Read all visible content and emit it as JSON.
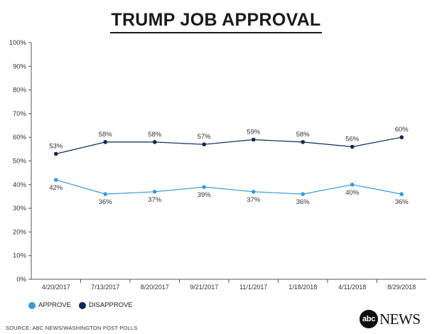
{
  "chart_data": {
    "type": "line",
    "title": "TRUMP JOB APPROVAL",
    "categories": [
      "4/20/2017",
      "7/13/2017",
      "8/20/2017",
      "9/21/2017",
      "11/1/2017",
      "1/18/2018",
      "4/11/2018",
      "8/29/2018"
    ],
    "y_ticks": [
      "0%",
      "10%",
      "20%",
      "30%",
      "40%",
      "50%",
      "60%",
      "70%",
      "80%",
      "90%",
      "100%"
    ],
    "ylim": [
      0,
      100
    ],
    "grid": false,
    "legend_position": "bottom-left",
    "series": [
      {
        "name": "APPROVE",
        "color": "#3a9ad9",
        "values": [
          42,
          36,
          37,
          39,
          37,
          36,
          40,
          36
        ],
        "labels": [
          "42%",
          "36%",
          "37%",
          "39%",
          "37%",
          "36%",
          "40%",
          "36%"
        ]
      },
      {
        "name": "DISAPPROVE",
        "color": "#0d2a55",
        "values": [
          53,
          58,
          58,
          57,
          59,
          58,
          56,
          60
        ],
        "labels": [
          "53%",
          "58%",
          "58%",
          "57%",
          "59%",
          "58%",
          "56%",
          "60%"
        ]
      }
    ]
  },
  "source": "SOURCE: ABC NEWS/WASHINGTON POST POLLS",
  "logo": {
    "mark": "abc",
    "word": "NEWS"
  }
}
